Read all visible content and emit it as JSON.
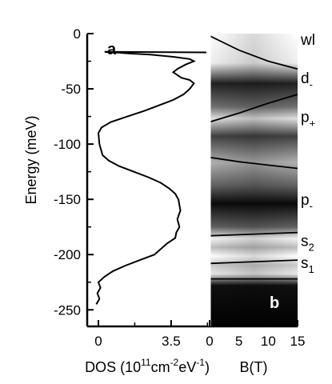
{
  "chart_data": [
    {
      "panel": "a",
      "type": "line",
      "ylabel": "Energy (meV)",
      "xlabel_main": "DOS (10",
      "xlabel_sup1": "11",
      "xlabel_mid": "cm",
      "xlabel_sup2": "-2",
      "xlabel_mid2": "eV",
      "xlabel_sup3": "-1",
      "xlabel_end": ")",
      "xlim": [
        0,
        5.2
      ],
      "ylim": [
        -265,
        0
      ],
      "xticks": [
        "0",
        "3.5"
      ],
      "xtick_values": [
        0,
        3.5
      ],
      "yticks": [
        "0",
        "-50",
        "-100",
        "-150",
        "-200",
        "-250"
      ],
      "ytick_values": [
        0,
        -50,
        -100,
        -150,
        -200,
        -250
      ],
      "series": [
        {
          "x": [
            -0.1,
            0.05,
            -0.05,
            0.1,
            0.0,
            0.3,
            0.7,
            1.3,
            2.0,
            2.7,
            3.3,
            3.7,
            3.75,
            3.9,
            3.8,
            3.95,
            3.85,
            3.7,
            3.4,
            3.0,
            2.4,
            1.7,
            1.0,
            0.5,
            0.2,
            0.05,
            0.0,
            0.15,
            0.6,
            1.4,
            2.2,
            2.9,
            3.6,
            4.1,
            4.4,
            4.6,
            4.4,
            4.0,
            3.6,
            3.8,
            4.2,
            4.6,
            4.4,
            3.6,
            2.5,
            1.5,
            0.8,
            0.5,
            0.3,
            5.2
          ],
          "y": [
            -245,
            -240,
            -235,
            -230,
            -225,
            -220,
            -215,
            -210,
            -205,
            -200,
            -190,
            -185,
            -180,
            -175,
            -168,
            -160,
            -150,
            -145,
            -140,
            -135,
            -130,
            -125,
            -120,
            -115,
            -110,
            -100,
            -90,
            -85,
            -80,
            -75,
            -70,
            -65,
            -60,
            -55,
            -50,
            -45,
            -42,
            -40,
            -35,
            -32,
            -28,
            -25,
            -23,
            -21,
            -19,
            -18,
            -17,
            -17,
            -16.5,
            -17
          ]
        }
      ]
    },
    {
      "panel": "b",
      "type": "heatmap",
      "xlabel": "B(T)",
      "xlim": [
        0,
        15
      ],
      "ylim": [
        -265,
        0
      ],
      "xticks": [
        "0",
        "5",
        "10",
        "15"
      ],
      "xtick_values": [
        0,
        5,
        10,
        15
      ],
      "colormap": "grayscale (black = low, white = high)",
      "lines": [
        {
          "label": "wl",
          "sub": "",
          "x": [
            0,
            5,
            10,
            15
          ],
          "y": [
            -2,
            -15,
            -25,
            -32
          ]
        },
        {
          "label": "d",
          "sub": "-",
          "x": [
            0,
            5,
            10,
            15
          ],
          "y": [
            -80,
            -72,
            -63,
            -55
          ]
        },
        {
          "label": "p",
          "sub": "+",
          "x": [
            0,
            5,
            10,
            15
          ],
          "y": [
            -112,
            -116,
            -119,
            -122
          ]
        },
        {
          "label": "p",
          "sub": "-",
          "x": [
            0,
            5,
            10,
            15
          ],
          "y": [
            -183,
            -182,
            -181,
            -180
          ]
        },
        {
          "label": "s",
          "sub": "2",
          "x": [
            0,
            5,
            10,
            15
          ],
          "y": [
            -208,
            -207,
            -206,
            -205
          ]
        },
        {
          "label": "s",
          "sub": "1",
          "x": [
            0,
            5,
            10,
            15
          ],
          "y": [
            -222,
            -222,
            -222,
            -222
          ]
        }
      ],
      "labels_text": [
        {
          "main": "wl",
          "sub": ""
        },
        {
          "main": "d",
          "sub": "-"
        },
        {
          "main": "p",
          "sub": "+"
        },
        {
          "main": "p",
          "sub": "-"
        },
        {
          "main": "s",
          "sub": "2"
        },
        {
          "main": "s",
          "sub": "1"
        }
      ]
    }
  ]
}
